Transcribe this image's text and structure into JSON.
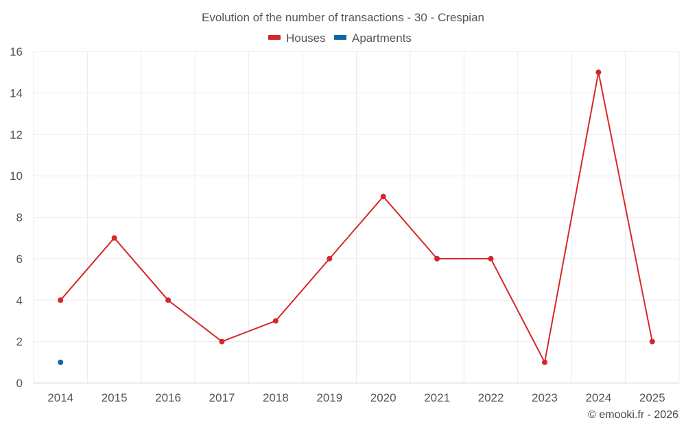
{
  "chart_data": {
    "type": "line",
    "title": "Evolution of the number of transactions - 30 - Crespian",
    "categories": [
      "2014",
      "2015",
      "2016",
      "2017",
      "2018",
      "2019",
      "2020",
      "2021",
      "2022",
      "2023",
      "2024",
      "2025"
    ],
    "series": [
      {
        "name": "Houses",
        "color": "#d62728",
        "values": [
          4,
          7,
          4,
          2,
          3,
          6,
          9,
          6,
          6,
          1,
          15,
          2
        ]
      },
      {
        "name": "Apartments",
        "color": "#0a6aa1",
        "values": [
          1,
          null,
          null,
          null,
          null,
          null,
          null,
          null,
          null,
          null,
          null,
          null
        ]
      }
    ],
    "ylim": [
      0,
      16
    ],
    "yticks": [
      "0",
      "2",
      "4",
      "6",
      "8",
      "10",
      "12",
      "14",
      "16"
    ],
    "legend_position": "top-center",
    "grid": true
  },
  "credit": "© emooki.fr - 2026"
}
